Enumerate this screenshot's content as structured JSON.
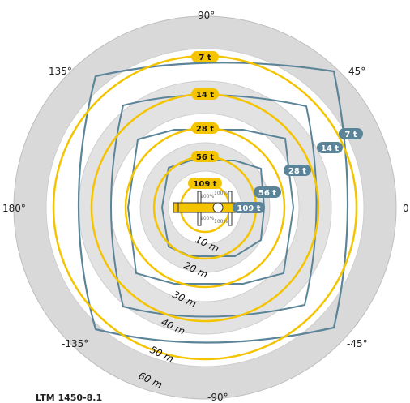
{
  "model": "LTM 1450-8.1",
  "angle_labels": {
    "a90": "90°",
    "a45": "45°",
    "a0": "0",
    "a_45": "-45°",
    "a_90": "-90°",
    "a_135": "-135°",
    "a180": "180°",
    "a135": "135°"
  },
  "distance_labels": [
    "10 m",
    "20 m",
    "30 m",
    "40 m",
    "50 m",
    "60 m"
  ],
  "load_circles": [
    "109 t",
    "56 t",
    "28 t",
    "14 t",
    "7 t"
  ],
  "outrigger_loads": [
    "109 t",
    "56 t",
    "28 t",
    "14 t",
    "7 t"
  ],
  "outrigger_percent": "100%",
  "colors": {
    "yellow": "#f5c400",
    "blue": "#5b8499",
    "ring_dark": "#d9d9d9",
    "ring_light": "#ececec"
  }
}
